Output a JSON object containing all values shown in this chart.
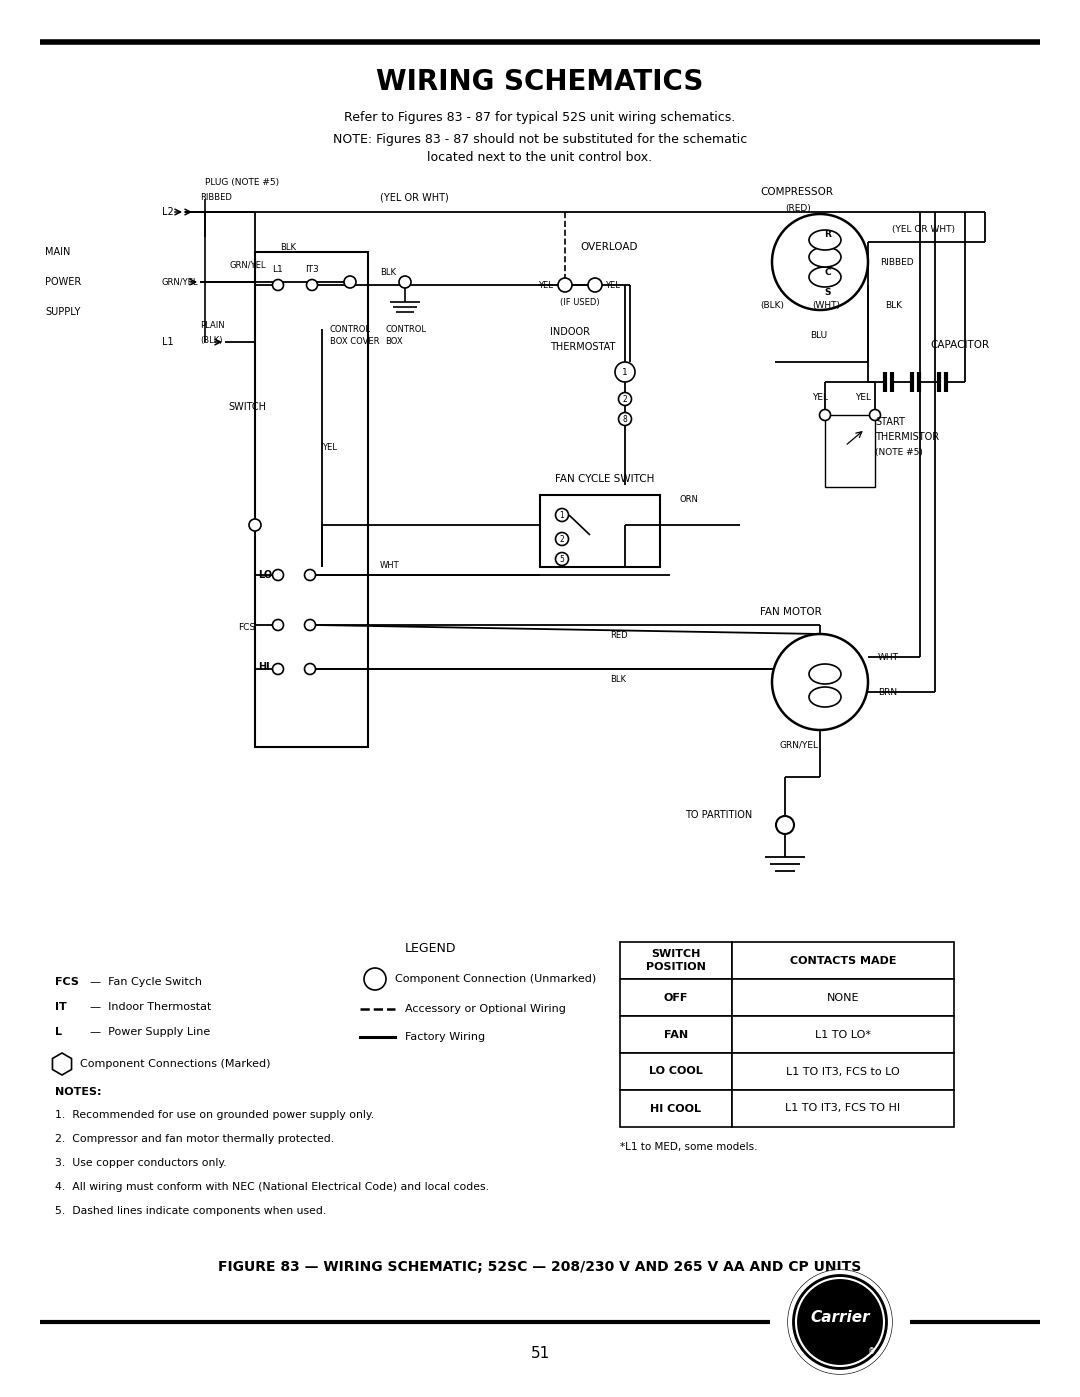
{
  "title": "WIRING SCHEMATICS",
  "subtitle1": "Refer to Figures 83 - 87 for typical 52S unit wiring schematics.",
  "subtitle2a": "NOTE: Figures 83 - 87 should not be substituted for the schematic",
  "subtitle2b": "located next to the unit control box.",
  "figure_caption": "FIGURE 83 — WIRING SCHEMATIC; 52SC — 208/230 V AND 265 V AA AND CP UNITS",
  "page_number": "51",
  "table_rows": [
    [
      "OFF",
      "NONE"
    ],
    [
      "FAN",
      "L1 TO LO*"
    ],
    [
      "LO COOL",
      "L1 TO IT3, FCS to LO"
    ],
    [
      "HI COOL",
      "L1 TO IT3, FCS TO HI"
    ]
  ],
  "table_footnote": "*L1 to MED, some models.",
  "notes": [
    "1.  Recommended for use on grounded power supply only.",
    "2.  Compressor and fan motor thermally protected.",
    "3.  Use copper conductors only.",
    "4.  All wiring must conform with NEC (National Electrical Code) and local codes.",
    "5.  Dashed lines indicate components when used."
  ]
}
